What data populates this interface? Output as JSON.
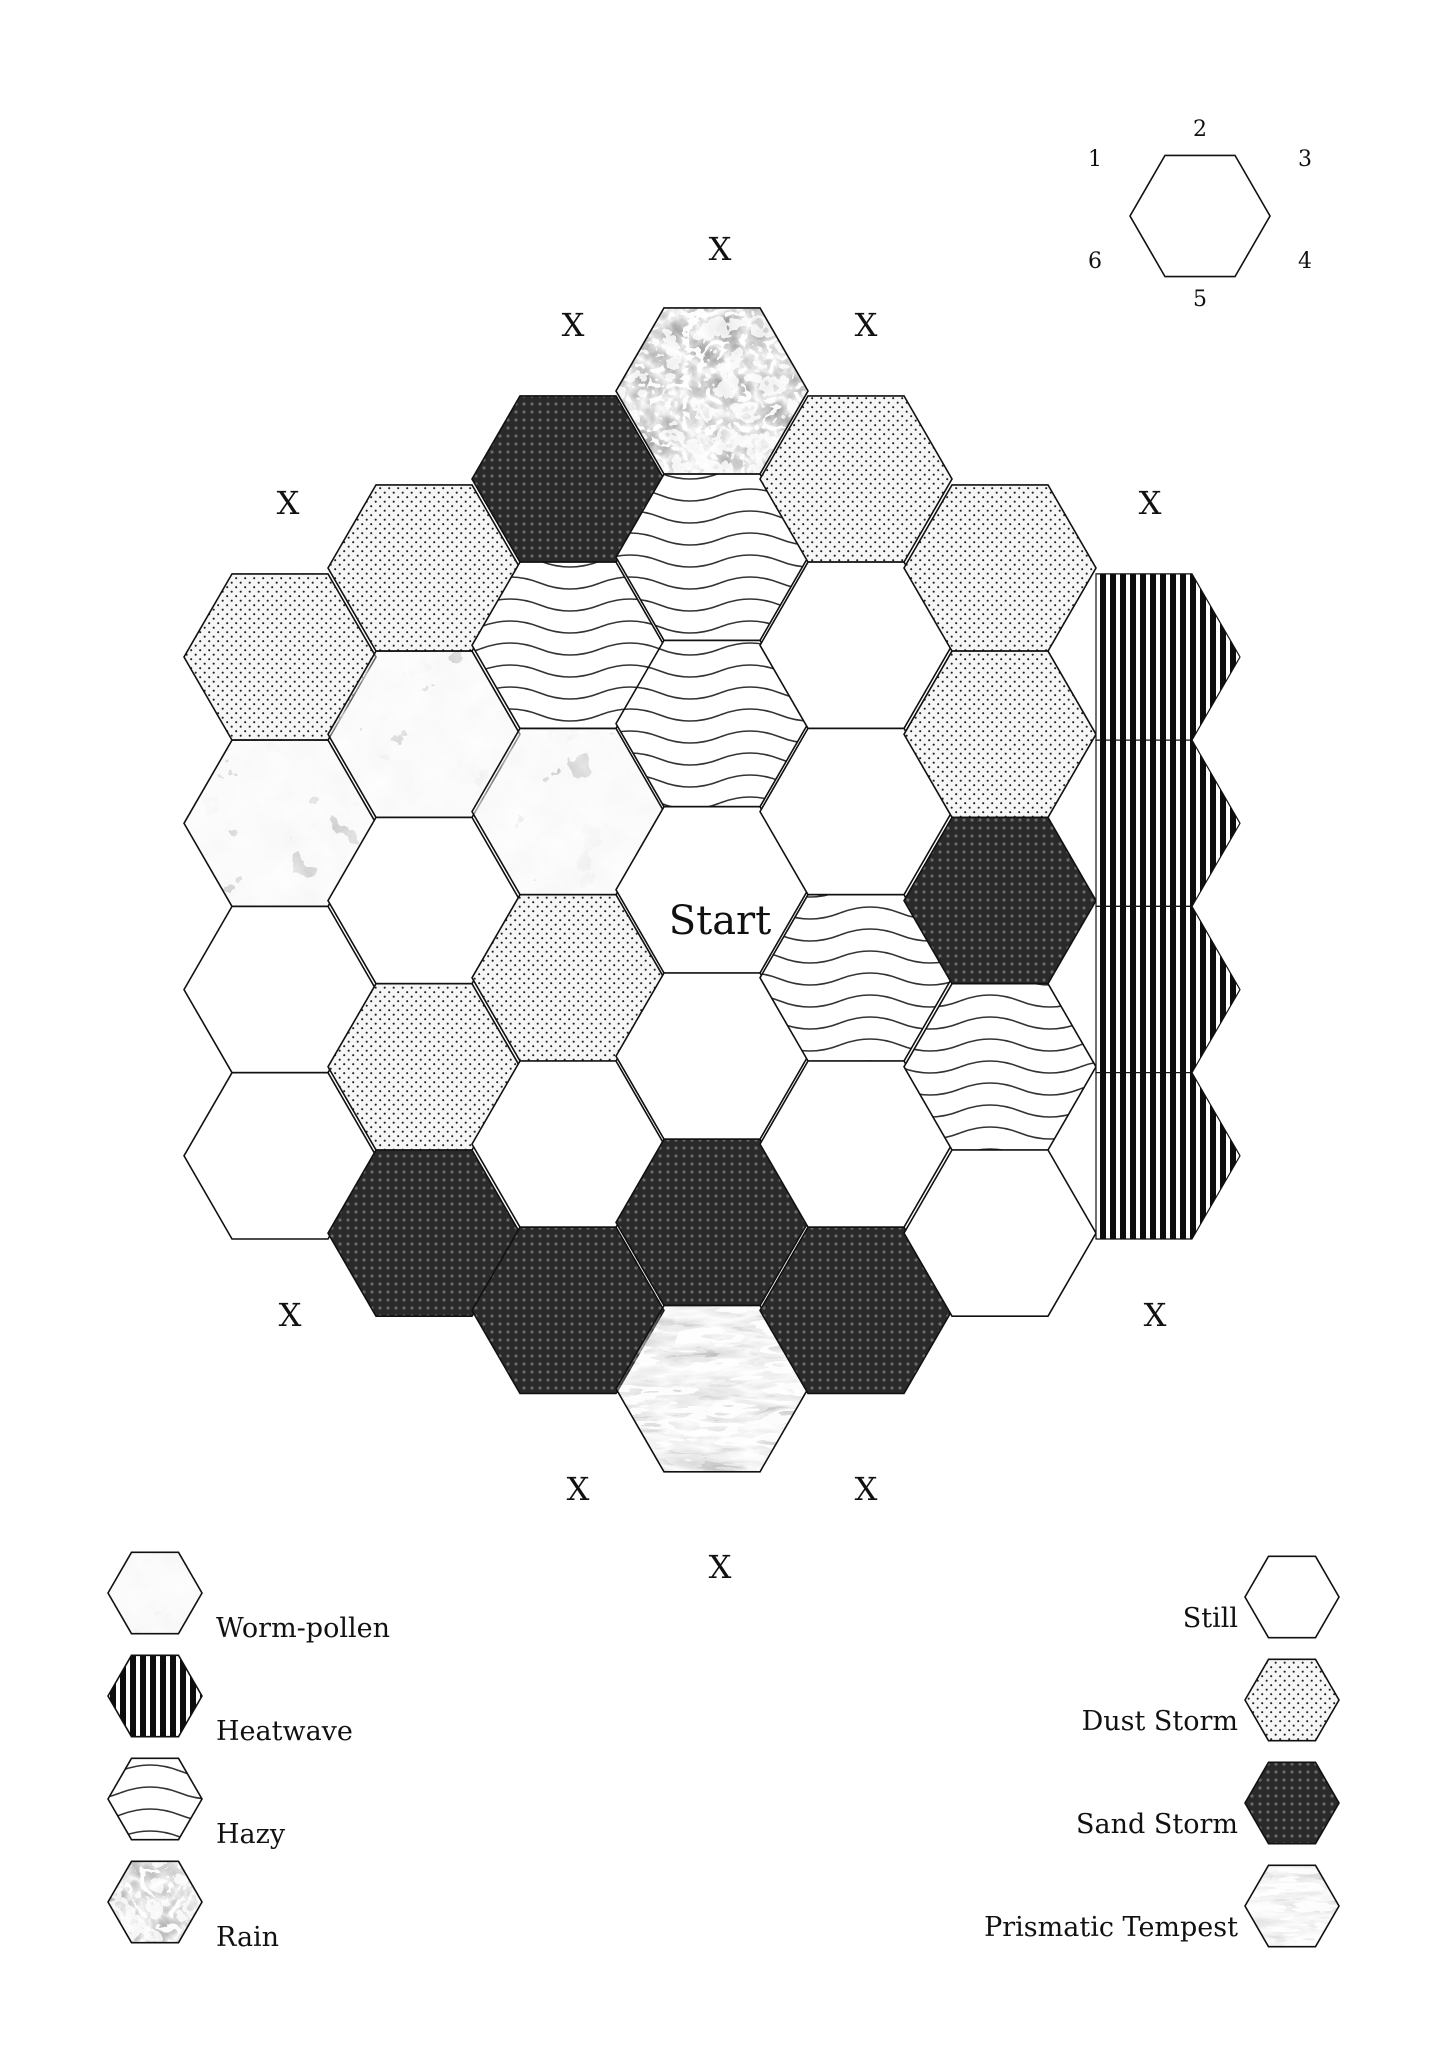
{
  "start_label": "Start",
  "exit_marker": "X",
  "direction_key": {
    "labels": [
      "1",
      "2",
      "3",
      "4",
      "5",
      "6"
    ]
  },
  "terrain_types": {
    "worm_pollen": "Worm-pollen",
    "heatwave": "Heatwave",
    "hazy": "Hazy",
    "rain": "Rain",
    "still": "Still",
    "dust_storm": "Dust Storm",
    "sand_storm": "Sand Storm",
    "prismatic_tempest": "Prismatic Tempest"
  },
  "legend_left": [
    "worm_pollen",
    "heatwave",
    "hazy",
    "rain"
  ],
  "legend_right": [
    "still",
    "dust_storm",
    "sand_storm",
    "prismatic_tempest"
  ],
  "board": {
    "columns": [
      [
        "dust_storm",
        "worm_pollen",
        "still",
        "still"
      ],
      [
        "dust_storm",
        "worm_pollen",
        "still",
        "dust_storm",
        "sand_storm"
      ],
      [
        "sand_storm",
        "hazy",
        "worm_pollen",
        "dust_storm",
        "still",
        "sand_storm"
      ],
      [
        "rain",
        "hazy",
        "hazy",
        "start",
        "still",
        "sand_storm",
        "prismatic_tempest"
      ],
      [
        "dust_storm",
        "still",
        "still",
        "hazy",
        "still",
        "sand_storm"
      ],
      [
        "dust_storm",
        "dust_storm",
        "sand_storm",
        "hazy",
        "still"
      ],
      [
        "heatwave",
        "heatwave",
        "heatwave",
        "heatwave"
      ]
    ]
  },
  "colors": {
    "ink": "#111111",
    "sand_storm_fill": "#2b2b2b",
    "dust_fill": "#f4f4f4"
  }
}
